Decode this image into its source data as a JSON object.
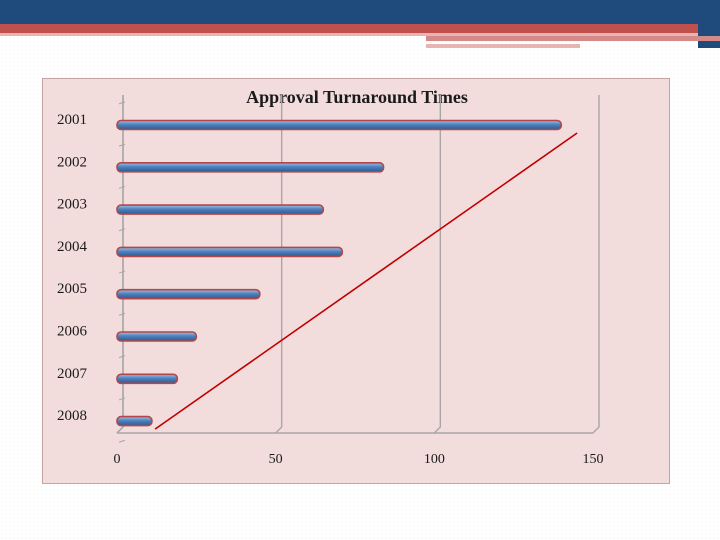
{
  "chart_data": {
    "type": "bar",
    "orientation": "horizontal",
    "title": "Approval Turnaround Times",
    "categories": [
      "2001",
      "2002",
      "2003",
      "2004",
      "2005",
      "2006",
      "2007",
      "2008"
    ],
    "values": [
      140,
      84,
      65,
      71,
      45,
      25,
      19,
      11
    ],
    "xlim": [
      0,
      150
    ],
    "xticks": [
      "0",
      "50",
      "100",
      "150"
    ],
    "grid": true,
    "legend": "none",
    "trend_line": {
      "from": [
        12,
        "2008"
      ],
      "to": [
        145,
        "2001"
      ],
      "color": "#c00000"
    },
    "colors": {
      "bar": "#4f81bd",
      "bar_outline": "#b2474a",
      "grid": "#a7a7a7"
    }
  }
}
